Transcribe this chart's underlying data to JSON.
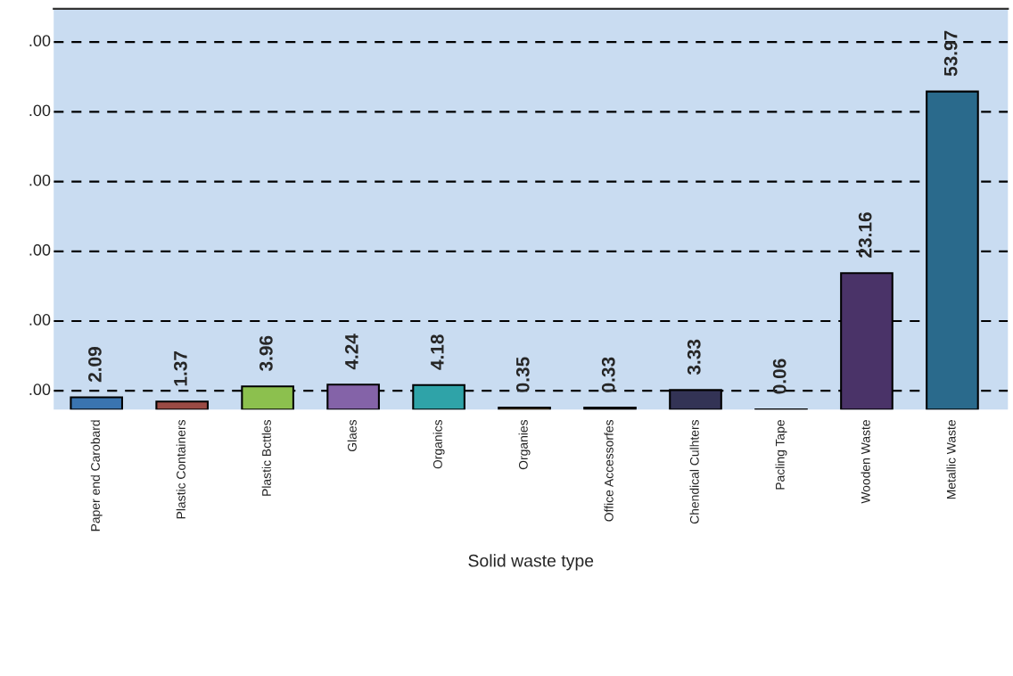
{
  "chart_data": {
    "type": "bar",
    "xlabel": "Solid waste type",
    "categories": [
      "Paper end Carobard",
      "Plastic Containers",
      "Plastic Bcttles",
      "Glaes",
      "Organics",
      "Organies",
      "Office Accessorfes",
      "Chendical Culhters",
      "Pacling Tape",
      "Wooden Waste",
      "Metallic Waste"
    ],
    "values": [
      2.09,
      1.37,
      3.96,
      4.24,
      4.18,
      0.35,
      0.33,
      3.33,
      0.06,
      23.16,
      53.97
    ],
    "colors": [
      "#3a74b0",
      "#9a4a44",
      "#8cc04e",
      "#8463a8",
      "#2fa3a8",
      "#f5b860",
      "#333355",
      "#333355",
      "#444466",
      "#4a3368",
      "#2a6a8c"
    ],
    "data_labels": true,
    "ylim": [
      0,
      68
    ],
    "annotations": [
      ".00",
      ".00",
      ".00",
      ".00",
      ".00",
      ".00"
    ],
    "grid": "y"
  }
}
